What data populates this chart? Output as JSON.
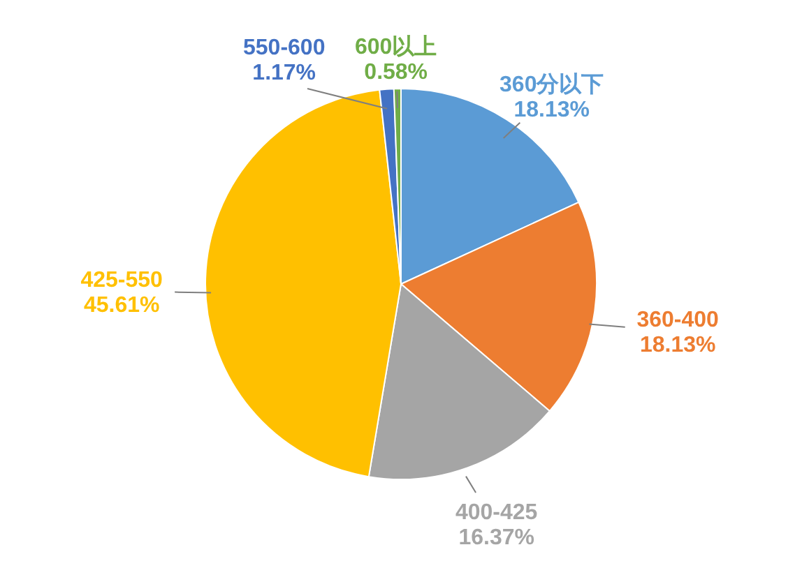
{
  "chart_data": {
    "type": "pie",
    "categories": [
      "360分以下",
      "360-400",
      "400-425",
      "425-550",
      "550-600",
      "600以上"
    ],
    "values": [
      18.13,
      18.13,
      16.37,
      45.61,
      1.17,
      0.58
    ],
    "value_labels": [
      "18.13%",
      "18.13%",
      "16.37%",
      "45.61%",
      "1.17%",
      "0.58%"
    ],
    "colors": [
      "#5b9bd5",
      "#ed7d31",
      "#a5a5a5",
      "#ffc000",
      "#4472c4",
      "#70ad47"
    ]
  }
}
